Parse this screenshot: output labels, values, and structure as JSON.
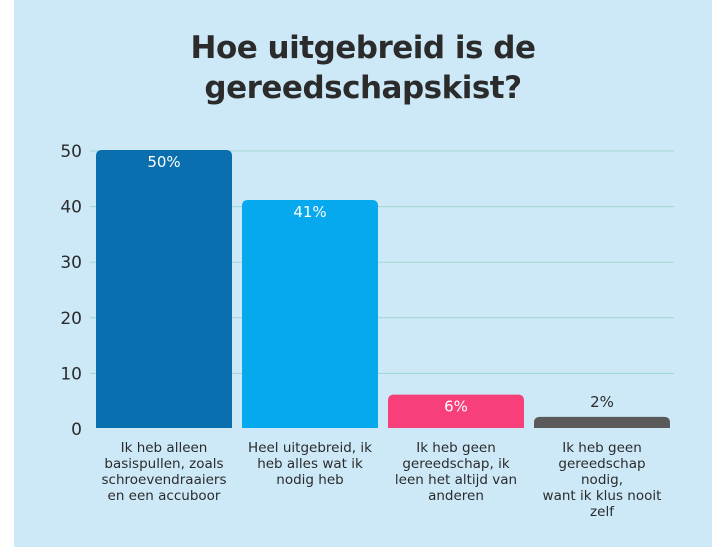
{
  "chart_data": {
    "type": "bar",
    "title": [
      "Hoe uitgebreid is de",
      "gereedschapskist?"
    ],
    "categories": [
      [
        "Ik heb alleen",
        "basispullen, zoals",
        "schroevendraaiers",
        "en een accuboor"
      ],
      [
        "Heel uitgebreid, ik",
        "heb alles wat ik",
        "nodig heb"
      ],
      [
        "Ik heb geen",
        "gereedschap, ik",
        "leen het altijd van",
        "anderen"
      ],
      [
        "Ik heb geen",
        "gereedschap",
        "nodig,",
        "want ik klus nooit",
        "zelf"
      ]
    ],
    "values": [
      50,
      41,
      6,
      2
    ],
    "value_labels": [
      "50%",
      "41%",
      "6%",
      "2%"
    ],
    "bar_colors": [
      "#0a6fae",
      "#06a8ee",
      "#f7407a",
      "#5a5a5a"
    ],
    "ylim": [
      0,
      50
    ],
    "yticks": [
      "0",
      "10",
      "20",
      "30",
      "40",
      "50"
    ],
    "grid": true,
    "xlabel": "",
    "ylabel": ""
  }
}
